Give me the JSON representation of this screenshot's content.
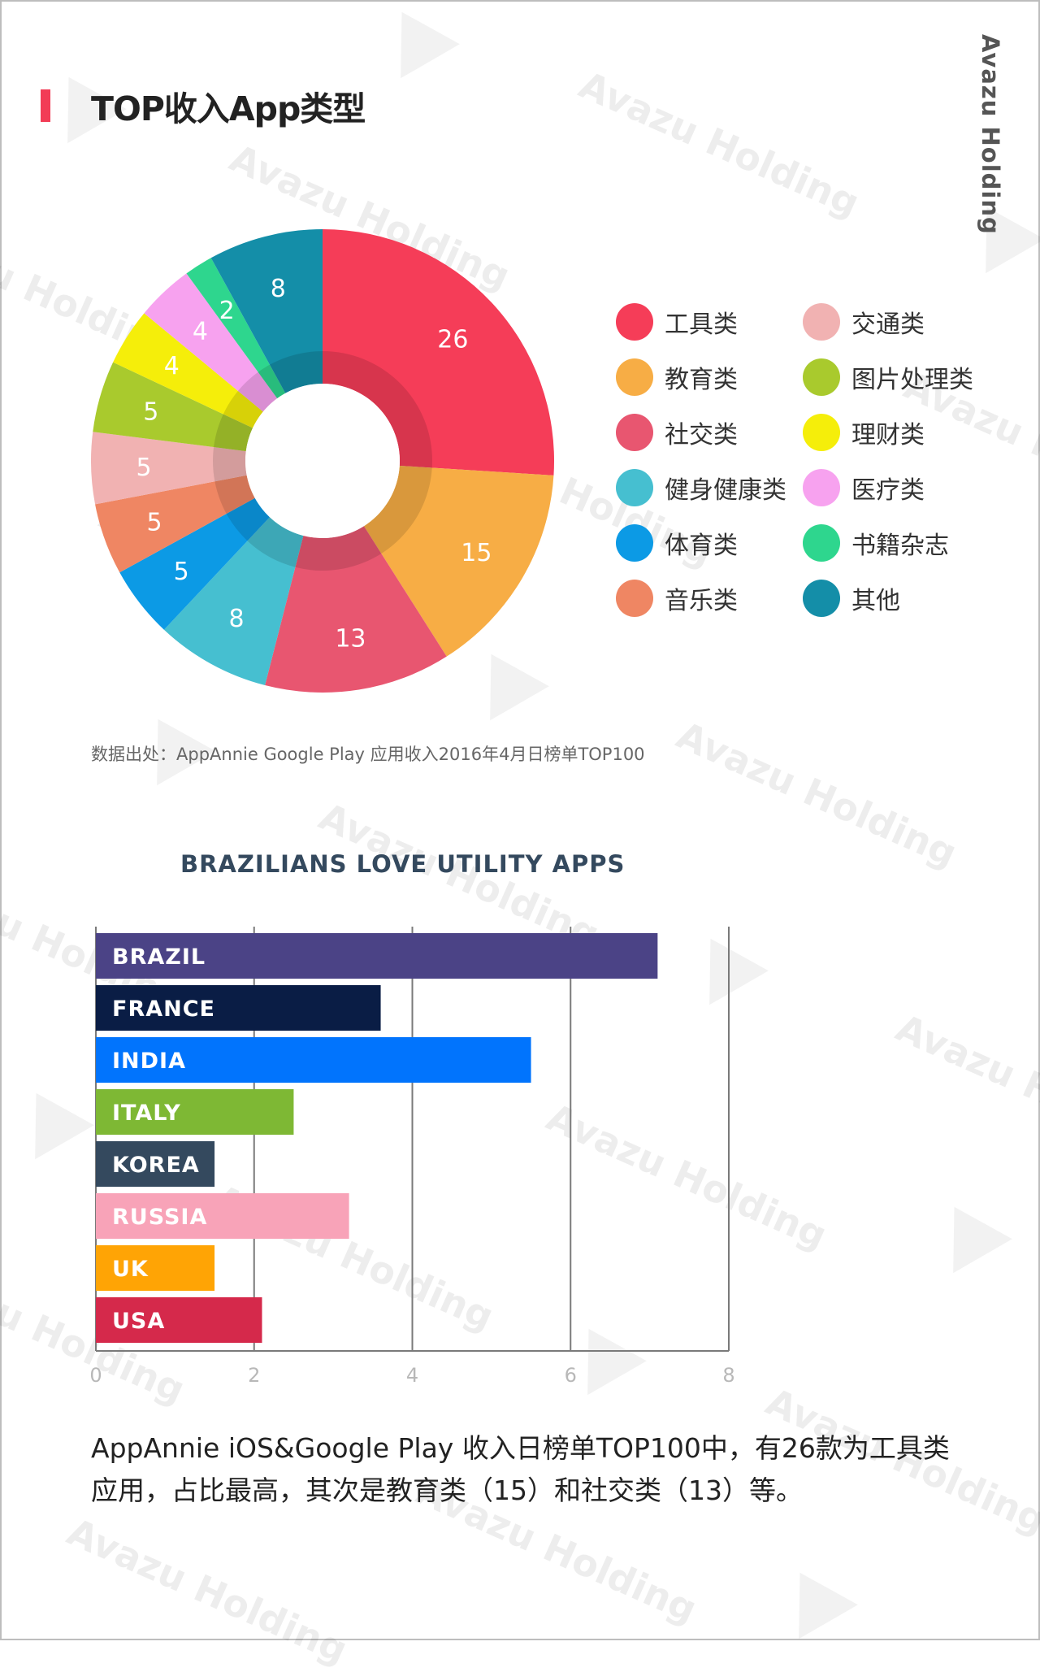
{
  "brand": "Avazu Holding",
  "watermark": "Avazu Holding",
  "section": {
    "title": "TOP收入App类型",
    "accent_color": "#f23c56"
  },
  "chart_data": [
    {
      "type": "pie",
      "title": "",
      "categories": [
        "工具类",
        "教育类",
        "社交类",
        "健身健康类",
        "体育类",
        "音乐类",
        "交通类",
        "图片处理类",
        "理财类",
        "医疗类",
        "书籍杂志",
        "其他"
      ],
      "values": [
        26,
        15,
        13,
        8,
        5,
        5,
        5,
        5,
        4,
        4,
        2,
        8
      ],
      "colors": [
        "#f53d58",
        "#f7ad45",
        "#e85670",
        "#46bfd0",
        "#0c9ae5",
        "#ef8663",
        "#f1b2b2",
        "#a9ca2d",
        "#f5ee0a",
        "#f7a2ef",
        "#2ed68e",
        "#148ea8"
      ],
      "legend_position": "right"
    },
    {
      "type": "bar",
      "title": "BRAZILIANS LOVE UTILITY APPS",
      "orientation": "horizontal",
      "categories": [
        "BRAZIL",
        "FRANCE",
        "INDIA",
        "ITALY",
        "KOREA",
        "RUSSIA",
        "UK",
        "USA"
      ],
      "values": [
        7.1,
        3.6,
        5.5,
        2.5,
        1.5,
        3.2,
        1.5,
        2.1
      ],
      "colors": [
        "#4b4386",
        "#0a1d45",
        "#0174fd",
        "#7eb834",
        "#34495e",
        "#f8a3b8",
        "#ffa405",
        "#d5294b"
      ],
      "xlim": [
        0,
        8
      ],
      "xticks": [
        "0",
        "2",
        "4",
        "6",
        "8"
      ],
      "grid": true
    }
  ],
  "source_note": "数据出处：AppAnnie Google Play 应用收入2016年4月日榜单TOP100",
  "caption": {
    "line1": "AppAnnie iOS&Google Play 收入日榜单TOP100中，有26款为工具类",
    "line2": "应用，占比最高，其次是教育类（15）和社交类（13）等。"
  }
}
